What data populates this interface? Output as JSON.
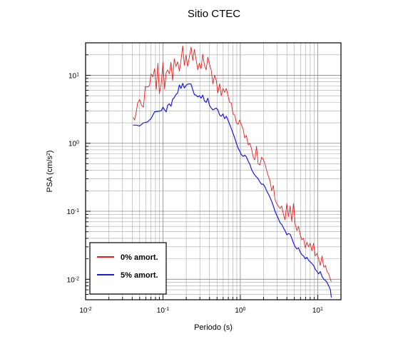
{
  "chart_data": {
    "type": "line",
    "title": "Sitio CTEC",
    "xlabel": "Periodo (s)",
    "ylabel_prefix": "PSA (cm/s",
    "ylabel_exp": "2",
    "ylabel_suffix": ")",
    "x_scale": "log",
    "y_scale": "log",
    "xlim": [
      0.01,
      20
    ],
    "ylim": [
      0.005,
      30
    ],
    "grid": true,
    "legend_position": "bottom-left",
    "x_ticks": [
      {
        "value": 0.01,
        "base": "10",
        "exp": "-2"
      },
      {
        "value": 0.1,
        "base": "10",
        "exp": "-1"
      },
      {
        "value": 1,
        "base": "10",
        "exp": "0"
      },
      {
        "value": 10,
        "base": "10",
        "exp": "1"
      }
    ],
    "y_ticks": [
      {
        "value": 0.01,
        "base": "10",
        "exp": "-2"
      },
      {
        "value": 0.1,
        "base": "10",
        "exp": "-1"
      },
      {
        "value": 1,
        "base": "10",
        "exp": "0"
      },
      {
        "value": 10,
        "base": "10",
        "exp": "1"
      }
    ],
    "series": [
      {
        "name": "0% amort.",
        "color": "#e8201f",
        "points": [
          [
            0.041,
            2.4
          ],
          [
            0.043,
            2.2
          ],
          [
            0.045,
            2.8
          ],
          [
            0.047,
            3.9
          ],
          [
            0.05,
            4.4
          ],
          [
            0.053,
            3.6
          ],
          [
            0.056,
            3.4
          ],
          [
            0.059,
            6.8
          ],
          [
            0.063,
            6.7
          ],
          [
            0.067,
            7.0
          ],
          [
            0.07,
            10.5
          ],
          [
            0.074,
            9.5
          ],
          [
            0.078,
            12.5
          ],
          [
            0.082,
            6.2
          ],
          [
            0.086,
            15.0
          ],
          [
            0.09,
            5.4
          ],
          [
            0.095,
            7.5
          ],
          [
            0.1,
            15.5
          ],
          [
            0.105,
            6.3
          ],
          [
            0.11,
            11.0
          ],
          [
            0.115,
            12.0
          ],
          [
            0.121,
            10.5
          ],
          [
            0.127,
            15.5
          ],
          [
            0.133,
            8.4
          ],
          [
            0.14,
            17.5
          ],
          [
            0.147,
            13.5
          ],
          [
            0.155,
            15.8
          ],
          [
            0.163,
            11.5
          ],
          [
            0.171,
            16.5
          ],
          [
            0.18,
            27.0
          ],
          [
            0.189,
            14.0
          ],
          [
            0.199,
            20.0
          ],
          [
            0.209,
            13.5
          ],
          [
            0.22,
            18.8
          ],
          [
            0.231,
            26.0
          ],
          [
            0.243,
            16.5
          ],
          [
            0.255,
            24.0
          ],
          [
            0.268,
            17.0
          ],
          [
            0.282,
            12.0
          ],
          [
            0.296,
            15.0
          ],
          [
            0.311,
            12.5
          ],
          [
            0.327,
            20.5
          ],
          [
            0.344,
            14.0
          ],
          [
            0.362,
            12.0
          ],
          [
            0.38,
            18.5
          ],
          [
            0.4,
            14.5
          ],
          [
            0.42,
            12.0
          ],
          [
            0.442,
            7.5
          ],
          [
            0.465,
            10.0
          ],
          [
            0.488,
            8.5
          ],
          [
            0.513,
            5.5
          ],
          [
            0.54,
            7.5
          ],
          [
            0.567,
            5.0
          ],
          [
            0.596,
            6.4
          ],
          [
            0.627,
            5.6
          ],
          [
            0.659,
            6.4
          ],
          [
            0.693,
            5.0
          ],
          [
            0.728,
            4.0
          ],
          [
            0.765,
            3.9
          ],
          [
            0.805,
            2.7
          ],
          [
            0.846,
            2.6
          ],
          [
            0.889,
            2.0
          ],
          [
            0.935,
            1.9
          ],
          [
            0.982,
            2.2
          ],
          [
            1.03,
            1.9
          ],
          [
            1.09,
            1.6
          ],
          [
            1.14,
            1.2
          ],
          [
            1.2,
            1.3
          ],
          [
            1.26,
            0.95
          ],
          [
            1.33,
            1.0
          ],
          [
            1.4,
            0.82
          ],
          [
            1.47,
            0.62
          ],
          [
            1.54,
            0.57
          ],
          [
            1.62,
            0.9
          ],
          [
            1.7,
            0.5
          ],
          [
            1.79,
            0.48
          ],
          [
            1.88,
            0.62
          ],
          [
            1.98,
            0.58
          ],
          [
            2.08,
            0.5
          ],
          [
            2.19,
            0.4
          ],
          [
            2.3,
            0.33
          ],
          [
            2.42,
            0.28
          ],
          [
            2.54,
            0.2
          ],
          [
            2.67,
            0.24
          ],
          [
            2.81,
            0.15
          ],
          [
            2.95,
            0.13
          ],
          [
            3.1,
            0.12
          ],
          [
            3.26,
            0.11
          ],
          [
            3.43,
            0.12
          ],
          [
            3.61,
            0.09
          ],
          [
            3.79,
            0.075
          ],
          [
            3.99,
            0.13
          ],
          [
            4.19,
            0.084
          ],
          [
            4.41,
            0.12
          ],
          [
            4.63,
            0.071
          ],
          [
            4.87,
            0.13
          ],
          [
            5.12,
            0.065
          ],
          [
            5.38,
            0.052
          ],
          [
            5.66,
            0.06
          ],
          [
            5.95,
            0.045
          ],
          [
            6.25,
            0.038
          ],
          [
            6.57,
            0.04
          ],
          [
            6.91,
            0.029
          ],
          [
            7.26,
            0.035
          ],
          [
            7.63,
            0.03
          ],
          [
            8.02,
            0.034
          ],
          [
            8.43,
            0.026
          ],
          [
            8.86,
            0.034
          ],
          [
            9.31,
            0.022
          ],
          [
            9.79,
            0.024
          ],
          [
            10.3,
            0.02
          ],
          [
            10.8,
            0.016
          ],
          [
            11.4,
            0.022
          ],
          [
            12.0,
            0.015
          ],
          [
            12.6,
            0.016
          ],
          [
            13.2,
            0.013
          ],
          [
            13.9,
            0.012
          ],
          [
            14.6,
            0.01
          ],
          [
            15.0,
            0.0092
          ]
        ]
      },
      {
        "name": "5% amort.",
        "color": "#1a1ae6",
        "points": [
          [
            0.041,
            1.85
          ],
          [
            0.045,
            1.85
          ],
          [
            0.05,
            1.8
          ],
          [
            0.056,
            2.0
          ],
          [
            0.063,
            2.05
          ],
          [
            0.067,
            2.2
          ],
          [
            0.07,
            2.3
          ],
          [
            0.078,
            2.9
          ],
          [
            0.086,
            2.95
          ],
          [
            0.095,
            3.0
          ],
          [
            0.1,
            3.4
          ],
          [
            0.105,
            3.1
          ],
          [
            0.11,
            2.9
          ],
          [
            0.115,
            3.6
          ],
          [
            0.121,
            3.8
          ],
          [
            0.127,
            3.5
          ],
          [
            0.133,
            4.4
          ],
          [
            0.14,
            4.7
          ],
          [
            0.147,
            5.2
          ],
          [
            0.155,
            5.5
          ],
          [
            0.163,
            7.2
          ],
          [
            0.171,
            6.4
          ],
          [
            0.18,
            7.6
          ],
          [
            0.189,
            6.5
          ],
          [
            0.199,
            7.1
          ],
          [
            0.209,
            7.4
          ],
          [
            0.22,
            7.5
          ],
          [
            0.231,
            7.4
          ],
          [
            0.243,
            6.1
          ],
          [
            0.255,
            5.2
          ],
          [
            0.268,
            5.1
          ],
          [
            0.282,
            4.8
          ],
          [
            0.296,
            5.0
          ],
          [
            0.311,
            4.6
          ],
          [
            0.327,
            5.1
          ],
          [
            0.344,
            4.2
          ],
          [
            0.362,
            4.0
          ],
          [
            0.38,
            4.6
          ],
          [
            0.4,
            3.6
          ],
          [
            0.42,
            3.3
          ],
          [
            0.442,
            3.1
          ],
          [
            0.465,
            3.2
          ],
          [
            0.488,
            3.3
          ],
          [
            0.513,
            3.1
          ],
          [
            0.54,
            2.6
          ],
          [
            0.567,
            2.5
          ],
          [
            0.596,
            2.7
          ],
          [
            0.627,
            2.3
          ],
          [
            0.659,
            2.5
          ],
          [
            0.693,
            2.2
          ],
          [
            0.728,
            1.9
          ],
          [
            0.765,
            1.65
          ],
          [
            0.805,
            1.4
          ],
          [
            0.846,
            1.2
          ],
          [
            0.889,
            1.0
          ],
          [
            0.935,
            0.85
          ],
          [
            0.982,
            0.77
          ],
          [
            1.03,
            0.68
          ],
          [
            1.09,
            0.64
          ],
          [
            1.14,
            0.67
          ],
          [
            1.2,
            0.63
          ],
          [
            1.26,
            0.55
          ],
          [
            1.33,
            0.49
          ],
          [
            1.4,
            0.41
          ],
          [
            1.47,
            0.37
          ],
          [
            1.54,
            0.34
          ],
          [
            1.62,
            0.32
          ],
          [
            1.7,
            0.3
          ],
          [
            1.79,
            0.27
          ],
          [
            1.88,
            0.25
          ],
          [
            1.98,
            0.25
          ],
          [
            2.08,
            0.23
          ],
          [
            2.19,
            0.2
          ],
          [
            2.3,
            0.18
          ],
          [
            2.42,
            0.16
          ],
          [
            2.54,
            0.14
          ],
          [
            2.67,
            0.12
          ],
          [
            2.81,
            0.1
          ],
          [
            2.95,
            0.088
          ],
          [
            3.1,
            0.078
          ],
          [
            3.26,
            0.068
          ],
          [
            3.43,
            0.064
          ],
          [
            3.61,
            0.057
          ],
          [
            3.79,
            0.052
          ],
          [
            3.99,
            0.045
          ],
          [
            4.19,
            0.047
          ],
          [
            4.41,
            0.046
          ],
          [
            4.63,
            0.04
          ],
          [
            4.87,
            0.034
          ],
          [
            5.12,
            0.03
          ],
          [
            5.38,
            0.028
          ],
          [
            5.66,
            0.029
          ],
          [
            5.95,
            0.025
          ],
          [
            6.25,
            0.023
          ],
          [
            6.57,
            0.022
          ],
          [
            6.91,
            0.02
          ],
          [
            7.26,
            0.021
          ],
          [
            7.63,
            0.019
          ],
          [
            8.02,
            0.018
          ],
          [
            8.43,
            0.017
          ],
          [
            8.86,
            0.016
          ],
          [
            9.31,
            0.014
          ],
          [
            9.79,
            0.013
          ],
          [
            10.3,
            0.012
          ],
          [
            10.8,
            0.013
          ],
          [
            11.4,
            0.011
          ],
          [
            12.0,
            0.01
          ],
          [
            12.6,
            0.0096
          ],
          [
            13.2,
            0.009
          ],
          [
            13.9,
            0.008
          ],
          [
            14.6,
            0.007
          ],
          [
            15.0,
            0.0054
          ]
        ]
      }
    ]
  }
}
